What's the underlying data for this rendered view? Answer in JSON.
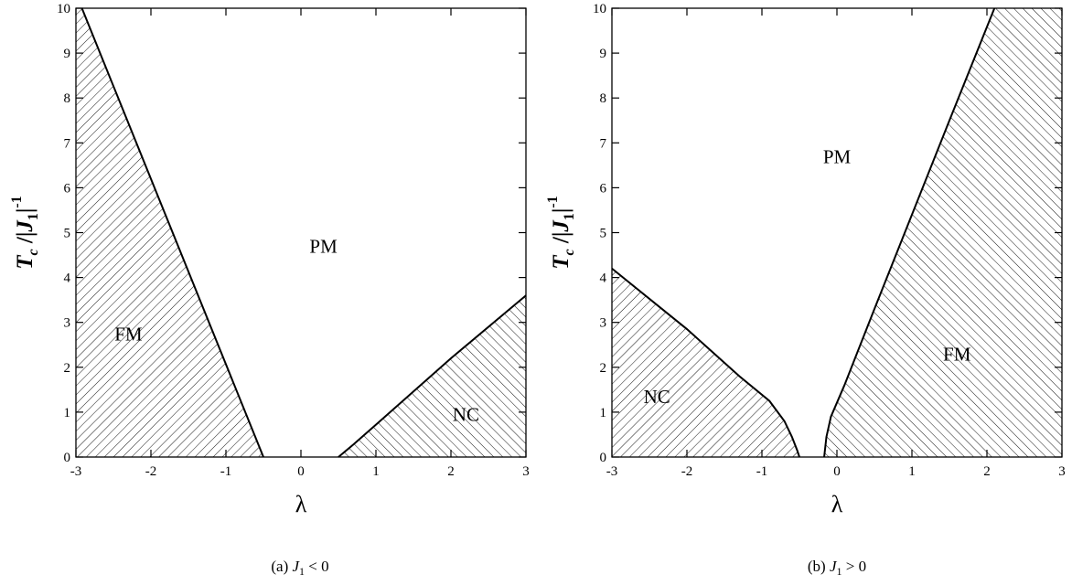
{
  "chart_data": [
    {
      "type": "area",
      "panel": "a",
      "caption": "(a) J₁ < 0",
      "caption_prefix": "(a)",
      "caption_condition": "< 0",
      "xlabel": "λ",
      "ylabel": {
        "T": "T",
        "sub_c": "c",
        "J": "J",
        "sub_1": "1",
        "sup": "-1"
      },
      "xlim": [
        -3,
        3
      ],
      "ylim": [
        0,
        10
      ],
      "xticks": [
        "-3",
        "-2",
        "-1",
        "0",
        "1",
        "2",
        "3"
      ],
      "yticks": [
        "0",
        "1",
        "2",
        "3",
        "4",
        "5",
        "6",
        "7",
        "8",
        "9",
        "10"
      ],
      "grid": false,
      "boundaries": [
        {
          "name": "FM",
          "points": [
            [
              -2.92,
              10
            ],
            [
              -0.5,
              0
            ]
          ]
        },
        {
          "name": "NC",
          "points": [
            [
              0.5,
              0
            ],
            [
              0.7,
              0.28
            ],
            [
              1.0,
              0.72
            ],
            [
              2.0,
              2.2
            ],
            [
              3.0,
              3.6
            ]
          ]
        }
      ],
      "regions": [
        {
          "label": "FM",
          "x": -2.3,
          "y": 2.6,
          "hatch": "forward",
          "polygon": [
            [
              -3,
              10
            ],
            [
              -2.92,
              10
            ],
            [
              -0.5,
              0
            ],
            [
              -3,
              0
            ]
          ]
        },
        {
          "label": "NC",
          "x": 2.2,
          "y": 0.8,
          "hatch": "backward",
          "polygon": [
            [
              0.5,
              0
            ],
            [
              0.7,
              0.28
            ],
            [
              1.0,
              0.72
            ],
            [
              2.0,
              2.2
            ],
            [
              3.0,
              3.6
            ],
            [
              3,
              0
            ]
          ]
        },
        {
          "label": "PM",
          "x": 0.3,
          "y": 4.55,
          "hatch": "none",
          "polygon": []
        }
      ]
    },
    {
      "type": "area",
      "panel": "b",
      "caption": "(b) J₁ > 0",
      "caption_prefix": "(b)",
      "caption_condition": "> 0",
      "xlabel": "λ",
      "ylabel": {
        "T": "T",
        "sub_c": "c",
        "J": "J",
        "sub_1": "1",
        "sup": "-1"
      },
      "xlim": [
        -3,
        3
      ],
      "ylim": [
        0,
        10
      ],
      "xticks": [
        "-3",
        "-2",
        "-1",
        "0",
        "1",
        "2",
        "3"
      ],
      "yticks": [
        "0",
        "1",
        "2",
        "3",
        "4",
        "5",
        "6",
        "7",
        "8",
        "9",
        "10"
      ],
      "grid": false,
      "boundaries": [
        {
          "name": "NC",
          "points": [
            [
              -3,
              4.2
            ],
            [
              -2,
              2.85
            ],
            [
              -1.3,
              1.8
            ],
            [
              -0.9,
              1.25
            ],
            [
              -0.7,
              0.8
            ],
            [
              -0.6,
              0.45
            ],
            [
              -0.53,
              0.15
            ],
            [
              -0.5,
              0
            ]
          ]
        },
        {
          "name": "FM",
          "points": [
            [
              -0.17,
              0
            ],
            [
              -0.14,
              0.45
            ],
            [
              -0.08,
              0.9
            ],
            [
              0.1,
              1.6
            ],
            [
              0.5,
              3.3
            ],
            [
              1.0,
              5.4
            ],
            [
              1.5,
              7.5
            ],
            [
              2.1,
              10
            ]
          ]
        }
      ],
      "regions": [
        {
          "label": "NC",
          "x": -2.4,
          "y": 1.2,
          "hatch": "forward",
          "polygon": [
            [
              -3,
              4.2
            ],
            [
              -2,
              2.85
            ],
            [
              -1.3,
              1.8
            ],
            [
              -0.9,
              1.25
            ],
            [
              -0.7,
              0.8
            ],
            [
              -0.6,
              0.45
            ],
            [
              -0.53,
              0.15
            ],
            [
              -0.5,
              0
            ],
            [
              -3,
              0
            ]
          ]
        },
        {
          "label": "FM",
          "x": 1.6,
          "y": 2.15,
          "hatch": "backward",
          "polygon": [
            [
              -0.17,
              0
            ],
            [
              -0.14,
              0.45
            ],
            [
              -0.08,
              0.9
            ],
            [
              0.1,
              1.6
            ],
            [
              0.5,
              3.3
            ],
            [
              1.0,
              5.4
            ],
            [
              1.5,
              7.5
            ],
            [
              2.1,
              10
            ],
            [
              3,
              10
            ],
            [
              3,
              0
            ]
          ]
        },
        {
          "label": "PM",
          "x": 0.0,
          "y": 6.55,
          "hatch": "none",
          "polygon": []
        }
      ]
    }
  ]
}
